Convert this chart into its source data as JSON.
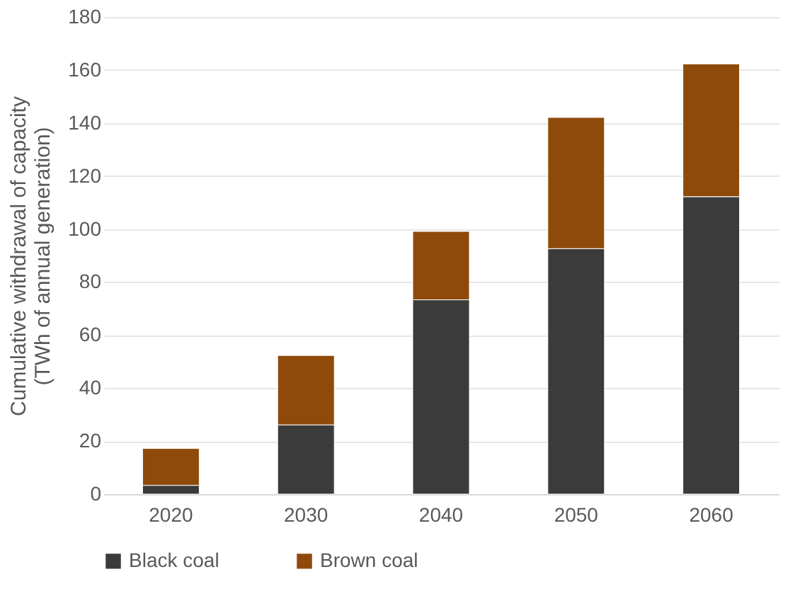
{
  "chart_data": {
    "type": "bar",
    "stacked": true,
    "ylabel": "Cumulative withdrawal of capacity\n(TWh of annual generation)",
    "categories": [
      "2020",
      "2030",
      "2040",
      "2050",
      "2060"
    ],
    "series": [
      {
        "name": "Black coal",
        "color": "#3a3b3a",
        "values": [
          3.3,
          26.1,
          73.3,
          92.6,
          112.2
        ]
      },
      {
        "name": "Brown coal",
        "color": "#8f4a0b",
        "values": [
          13.9,
          26.2,
          25.8,
          49.5,
          50.1
        ]
      }
    ],
    "ylim": [
      0,
      180
    ],
    "yticks": [
      0,
      20,
      40,
      60,
      80,
      100,
      120,
      140,
      160,
      180
    ],
    "grid": "y",
    "legend": "bottom"
  }
}
